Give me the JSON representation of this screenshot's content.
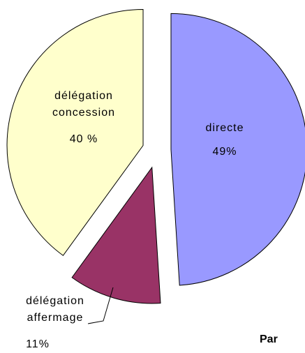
{
  "chart_data": {
    "type": "pie",
    "categories": [
      "directe",
      "délégation affermage",
      "délégation concession"
    ],
    "values": [
      49,
      11,
      40
    ],
    "value_labels": [
      "49%",
      "11%",
      "40 %"
    ],
    "colors": [
      "#9999ff",
      "#993366",
      "#ffffcc"
    ],
    "annotations": [
      "Par"
    ]
  }
}
